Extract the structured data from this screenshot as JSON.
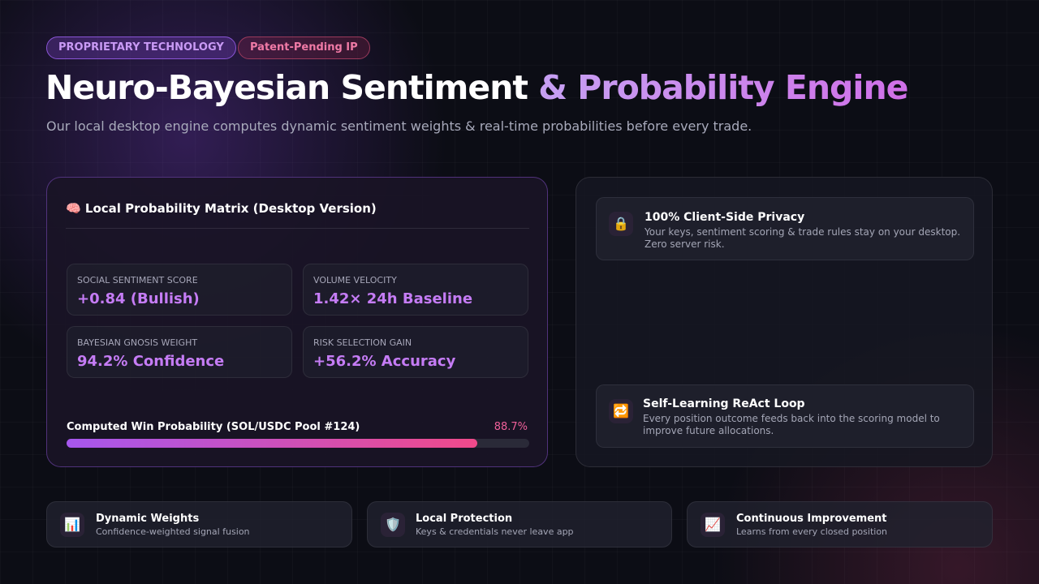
{
  "badges": [
    "PROPRIETARY TECHNOLOGY",
    "Patent-Pending IP"
  ],
  "header": {
    "title_main": "Neuro-Bayesian Sentiment",
    "title_highlight": "& Probability Engine",
    "subtitle": "Our local desktop engine computes dynamic sentiment weights & real-time probabilities before every trade."
  },
  "matrix": {
    "title": "🧠 Local Probability Matrix (Desktop Version)",
    "metrics": [
      {
        "label": "SOCIAL SENTIMENT SCORE",
        "value": "+0.84 (Bullish)"
      },
      {
        "label": "VOLUME VELOCITY",
        "value": "1.42× 24h Baseline"
      },
      {
        "label": "BAYESIAN GNOSIS WEIGHT",
        "value": "94.2% Confidence"
      },
      {
        "label": "RISK SELECTION GAIN",
        "value": "+56.2% Accuracy"
      }
    ],
    "progress": {
      "label": "Computed Win Probability (SOL/USDC Pool #124)",
      "value": 88.7,
      "value_label": "88.7%"
    }
  },
  "features": [
    {
      "icon": "🔒",
      "title": "100% Client-Side Privacy",
      "text": "Your keys, sentiment scoring & trade rules stay on your desktop. Zero server risk."
    },
    {
      "icon": "🔁",
      "title": "Self-Learning ReAct Loop",
      "text": "Every position outcome feeds back into the scoring model to improve future allocations."
    }
  ],
  "bottom": [
    {
      "icon": "📊",
      "title": "Dynamic Weights",
      "text": "Confidence-weighted signal fusion"
    },
    {
      "icon": "🛡️",
      "title": "Local Protection",
      "text": "Keys & credentials never leave app"
    },
    {
      "icon": "📈",
      "title": "Continuous Improvement",
      "text": "Learns from every closed position"
    }
  ]
}
